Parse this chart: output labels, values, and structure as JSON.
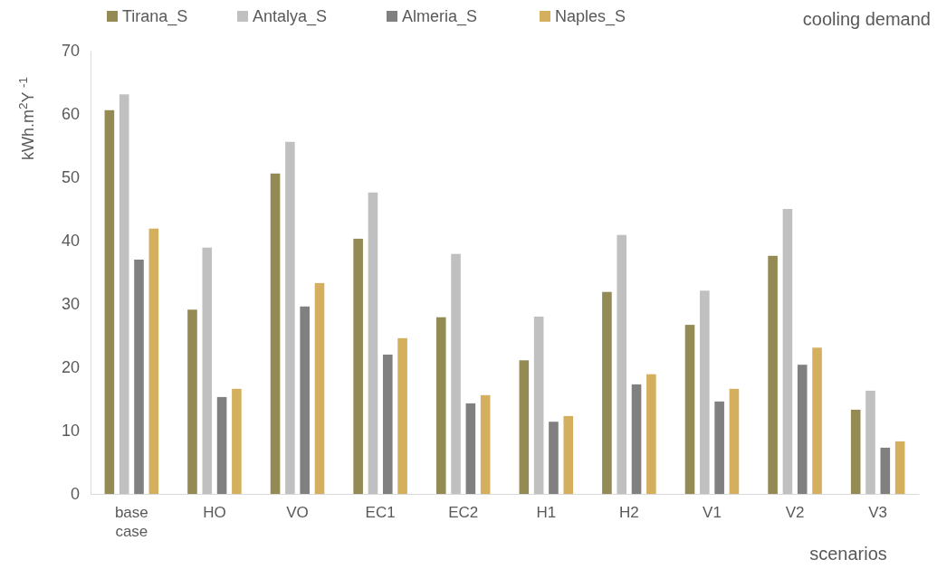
{
  "chart_data": {
    "type": "bar",
    "categories": [
      "base case",
      "HO",
      "VO",
      "EC1",
      "EC2",
      "H1",
      "H2",
      "V1",
      "V2",
      "V3"
    ],
    "series": [
      {
        "name": "Tirana_S",
        "color": "#948a54",
        "values": [
          60.6,
          29.1,
          50.6,
          40.3,
          27.9,
          21.1,
          31.9,
          26.7,
          37.6,
          13.3
        ]
      },
      {
        "name": "Antalya_S",
        "color": "#c0c0c0",
        "values": [
          63.1,
          38.9,
          55.6,
          47.6,
          37.9,
          28,
          40.9,
          32.1,
          45,
          16.3
        ]
      },
      {
        "name": "Almeria_S",
        "color": "#808080",
        "values": [
          37,
          15.3,
          29.6,
          22,
          14.3,
          11.4,
          17.3,
          14.6,
          20.4,
          7.3
        ]
      },
      {
        "name": "Naples_S",
        "color": "#d4b05e",
        "values": [
          41.9,
          16.6,
          33.3,
          24.6,
          15.6,
          12.3,
          18.9,
          16.6,
          23.1,
          8.3
        ]
      }
    ],
    "ylim": [
      0,
      70
    ],
    "yticks": [
      0,
      10,
      20,
      30,
      40,
      50,
      60,
      70
    ],
    "ylabel": "kWh.m$^{2}$Y $^{-1}$",
    "xlabel": "scenarios",
    "annotations": [
      "cooling demand"
    ],
    "legend": "top",
    "grid": false
  }
}
